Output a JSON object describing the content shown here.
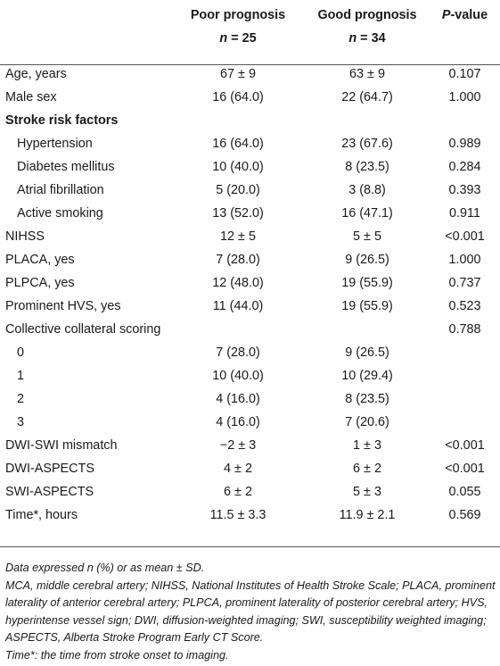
{
  "table": {
    "header": {
      "col1_title": "Poor prognosis",
      "col1_n_prefix": "n",
      "col1_n_value": " = 25",
      "col2_title": "Good prognosis",
      "col2_n_prefix": "n",
      "col2_n_value": " = 34",
      "col3_italic": "P",
      "col3_rest": "-value"
    },
    "rows": [
      {
        "label": "Age, years",
        "poor": "67 ± 9",
        "good": "63 ± 9",
        "p": "0.107"
      },
      {
        "label": "Male sex",
        "poor": "16 (64.0)",
        "good": "22 (64.7)",
        "p": "1.000"
      },
      {
        "label": "Stroke risk factors",
        "poor": "",
        "good": "",
        "p": ""
      },
      {
        "label": "Hypertension",
        "poor": "16 (64.0)",
        "good": "23 (67.6)",
        "p": "0.989"
      },
      {
        "label": "Diabetes mellitus",
        "poor": "10 (40.0)",
        "good": "8 (23.5)",
        "p": "0.284"
      },
      {
        "label": "Atrial fibrillation",
        "poor": "5 (20.0)",
        "good": "3 (8.8)",
        "p": "0.393"
      },
      {
        "label": "Active smoking",
        "poor": "13 (52.0)",
        "good": "16 (47.1)",
        "p": "0.911"
      },
      {
        "label": "NIHSS",
        "poor": "12 ± 5",
        "good": "5 ± 5",
        "p": "<0.001"
      },
      {
        "label": "PLACA, yes",
        "poor": "7 (28.0)",
        "good": "9 (26.5)",
        "p": "1.000"
      },
      {
        "label": "PLPCA, yes",
        "poor": "12 (48.0)",
        "good": "19 (55.9)",
        "p": "0.737"
      },
      {
        "label": "Prominent HVS, yes",
        "poor": "11 (44.0)",
        "good": "19 (55.9)",
        "p": "0.523"
      },
      {
        "label": "Collective collateral scoring",
        "poor": "",
        "good": "",
        "p": "0.788"
      },
      {
        "label": "0",
        "poor": "7 (28.0)",
        "good": "9 (26.5)",
        "p": ""
      },
      {
        "label": "1",
        "poor": "10 (40.0)",
        "good": "10 (29.4)",
        "p": ""
      },
      {
        "label": "2",
        "poor": "4 (16.0)",
        "good": "8 (23.5)",
        "p": ""
      },
      {
        "label": "3",
        "poor": "4 (16.0)",
        "good": "7 (20.6)",
        "p": ""
      },
      {
        "label": "DWI-SWI mismatch",
        "poor": "−2 ± 3",
        "good": "1 ± 3",
        "p": "<0.001"
      },
      {
        "label": "DWI-ASPECTS",
        "poor": "4 ± 2",
        "good": "6 ± 2",
        "p": "<0.001"
      },
      {
        "label": "SWI-ASPECTS",
        "poor": "6 ± 2",
        "good": "5 ± 3",
        "p": "0.055"
      },
      {
        "label": "Time*, hours",
        "poor": "11.5 ± 3.3",
        "good": "11.9 ± 2.1",
        "p": "0.569"
      }
    ]
  },
  "footnotes": [
    "Data expressed n (%) or as mean ± SD.",
    "MCA, middle cerebral artery; NIHSS, National Institutes of Health Stroke Scale; PLACA, prominent laterality of anterior cerebral artery; PLPCA, prominent laterality of posterior cerebral artery; HVS, hyperintense vessel sign; DWI, diffusion-weighted imaging; SWI, susceptibility weighted imaging; ASPECTS, Alberta Stroke Program Early CT Score.",
    "Time*: the time from stroke onset to imaging."
  ]
}
